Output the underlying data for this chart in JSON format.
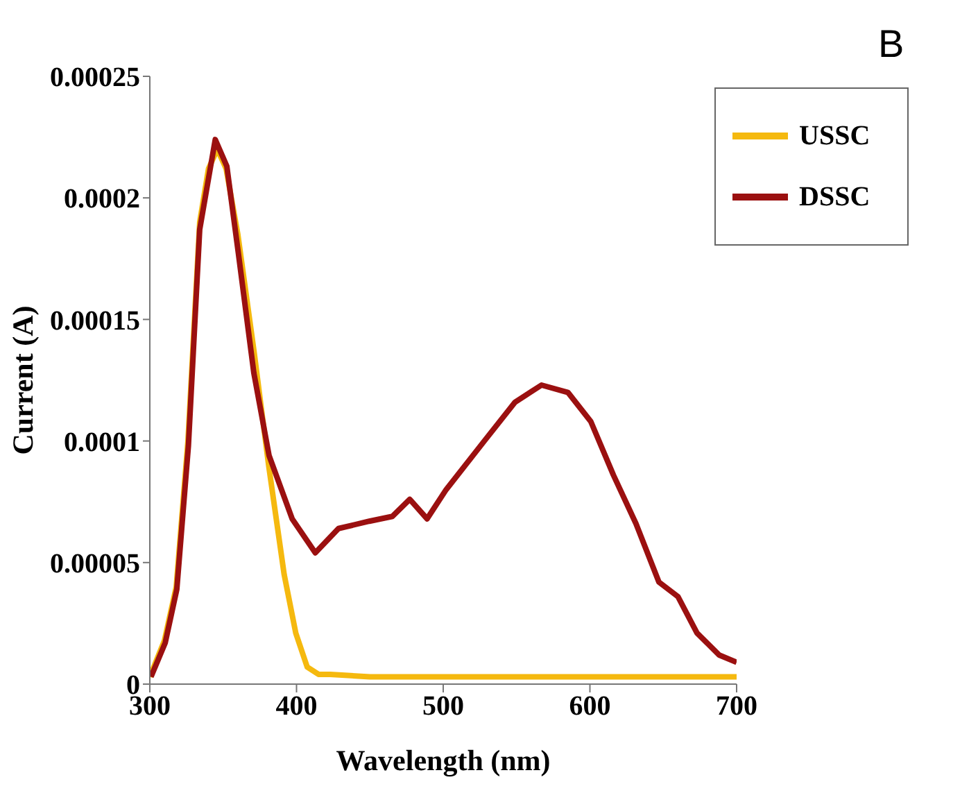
{
  "chart_data": {
    "type": "line",
    "xlabel": "Wavelength (nm)",
    "ylabel": "Current (A)",
    "annotations": [
      "B"
    ],
    "xlim": [
      300,
      700
    ],
    "xticks": [
      300,
      400,
      500,
      600,
      700
    ],
    "ylim": [
      0,
      0.00025
    ],
    "yticks": [
      {
        "value": 0,
        "label": "0"
      },
      {
        "value": 5e-05,
        "label": "0.00005"
      },
      {
        "value": 0.0001,
        "label": "0.0001"
      },
      {
        "value": 0.00015,
        "label": "0.00015"
      },
      {
        "value": 0.0002,
        "label": "0.0002"
      },
      {
        "value": 0.00025,
        "label": "0.00025"
      }
    ],
    "grid": false,
    "legend": "top right",
    "marker": "none",
    "line_style": "solid",
    "series": [
      {
        "name": "USSC",
        "color": "#f5b90f",
        "x": [
          300,
          310,
          318,
          326,
          334,
          340,
          346,
          352,
          360,
          371,
          381,
          391.6,
          399.5,
          407.3,
          415,
          423,
          450,
          500,
          550,
          600,
          650,
          700
        ],
        "values": [
          3e-06,
          1.8e-05,
          4e-05,
          0.0001,
          0.00019,
          0.000212,
          0.00022,
          0.000212,
          0.000185,
          0.000137,
          9e-05,
          4.5e-05,
          2.1e-05,
          7e-06,
          4e-06,
          4e-06,
          3e-06,
          3e-06,
          3e-06,
          3e-06,
          3e-06,
          3e-06
        ]
      },
      {
        "name": "DSSC",
        "color": "#9b1010",
        "x": [
          300.8,
          310.5,
          318.4,
          326.3,
          334,
          344.6,
          352.5,
          360.4,
          370.9,
          381.3,
          397,
          412.8,
          428.6,
          449.6,
          465.4,
          477.2,
          489,
          502,
          528,
          549,
          567,
          585,
          600.6,
          616,
          631.4,
          647,
          660,
          673,
          688,
          700
        ],
        "values": [
          3e-06,
          1.7e-05,
          3.9e-05,
          9.8e-05,
          0.000187,
          0.000224,
          0.000213,
          0.000177,
          0.000128,
          9.4e-05,
          6.8e-05,
          5.4e-05,
          6.4e-05,
          6.7e-05,
          6.9e-05,
          7.6e-05,
          6.8e-05,
          8e-05,
          0.0001,
          0.000116,
          0.000123,
          0.00012,
          0.000108,
          8.6e-05,
          6.6e-05,
          4.2e-05,
          3.6e-05,
          2.1e-05,
          1.2e-05,
          9e-06
        ]
      }
    ]
  }
}
